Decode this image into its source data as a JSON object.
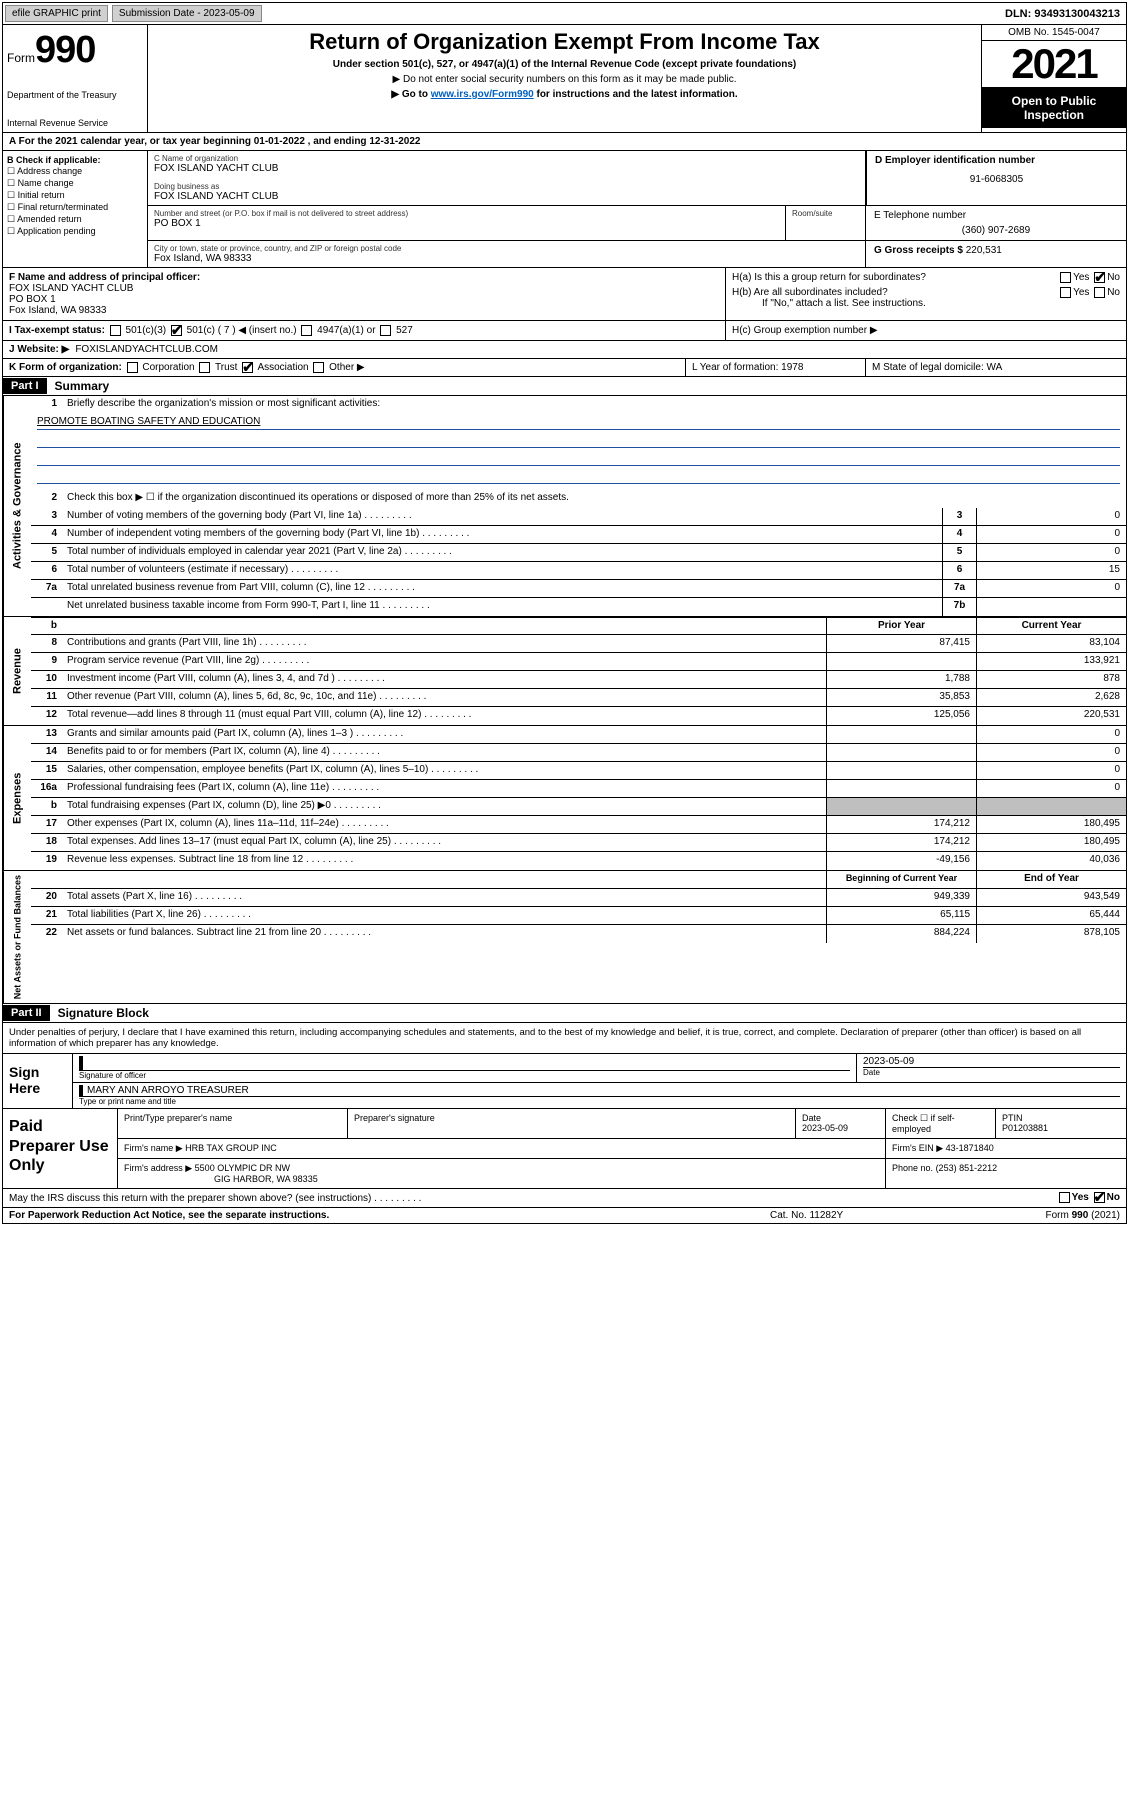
{
  "topbar": {
    "efile": "efile GRAPHIC print",
    "submission_label": "Submission Date - 2023-05-09",
    "dln": "DLN: 93493130043213"
  },
  "header": {
    "form_label": "Form",
    "form_num": "990",
    "dept": "Department of the Treasury",
    "irs": "Internal Revenue Service",
    "title": "Return of Organization Exempt From Income Tax",
    "subtitle": "Under section 501(c), 527, or 4947(a)(1) of the Internal Revenue Code (except private foundations)",
    "note1": "▶ Do not enter social security numbers on this form as it may be made public.",
    "note2_a": "▶ Go to ",
    "note2_link": "www.irs.gov/Form990",
    "note2_b": " for instructions and the latest information.",
    "omb": "OMB No. 1545-0047",
    "year": "2021",
    "open": "Open to Public Inspection"
  },
  "row_a": "A For the 2021 calendar year, or tax year beginning 01-01-2022  , and ending 12-31-2022",
  "section_b": {
    "label": "B Check if applicable:",
    "items": [
      "Address change",
      "Name change",
      "Initial return",
      "Final return/terminated",
      "Amended return",
      "Application pending"
    ]
  },
  "section_c": {
    "name_label": "C Name of organization",
    "name": "FOX ISLAND YACHT CLUB",
    "dba_label": "Doing business as",
    "dba": "FOX ISLAND YACHT CLUB",
    "addr_label": "Number and street (or P.O. box if mail is not delivered to street address)",
    "room_label": "Room/suite",
    "addr": "PO BOX 1",
    "city_label": "City or town, state or province, country, and ZIP or foreign postal code",
    "city": "Fox Island, WA  98333"
  },
  "section_d": {
    "label": "D Employer identification number",
    "value": "91-6068305"
  },
  "section_e": {
    "label": "E Telephone number",
    "value": "(360) 907-2689"
  },
  "section_g": {
    "label": "G Gross receipts $",
    "value": "220,531"
  },
  "section_f": {
    "label": "F Name and address of principal officer:",
    "l1": "FOX ISLAND YACHT CLUB",
    "l2": "PO BOX 1",
    "l3": "Fox Island, WA  98333"
  },
  "section_h": {
    "ha": "H(a)  Is this a group return for subordinates?",
    "hb": "H(b)  Are all subordinates included?",
    "hb_note": "If \"No,\" attach a list. See instructions.",
    "hc": "H(c)  Group exemption number ▶",
    "yes": "Yes",
    "no": "No"
  },
  "row_i": {
    "label": "I  Tax-exempt status:",
    "opts": [
      "501(c)(3)",
      "501(c) ( 7 ) ◀ (insert no.)",
      "4947(a)(1) or",
      "527"
    ]
  },
  "row_j": {
    "label": "J  Website: ▶",
    "value": "FOXISLANDYACHTCLUB.COM"
  },
  "row_k": {
    "label": "K Form of organization:",
    "opts": [
      "Corporation",
      "Trust",
      "Association",
      "Other ▶"
    ]
  },
  "row_l": {
    "l": "L Year of formation: 1978",
    "m": "M State of legal domicile: WA"
  },
  "part1": {
    "hdr": "Part I",
    "title": "Summary",
    "tabs": [
      "Activities & Governance",
      "Revenue",
      "Expenses",
      "Net Assets or Fund Balances"
    ],
    "q1": "Briefly describe the organization's mission or most significant activities:",
    "mission": "PROMOTE BOATING SAFETY AND EDUCATION",
    "q2": "Check this box ▶ ☐  if the organization discontinued its operations or disposed of more than 25% of its net assets.",
    "rows_ag": [
      {
        "n": "3",
        "t": "Number of voting members of the governing body (Part VI, line 1a)",
        "box": "3",
        "v": "0"
      },
      {
        "n": "4",
        "t": "Number of independent voting members of the governing body (Part VI, line 1b)",
        "box": "4",
        "v": "0"
      },
      {
        "n": "5",
        "t": "Total number of individuals employed in calendar year 2021 (Part V, line 2a)",
        "box": "5",
        "v": "0"
      },
      {
        "n": "6",
        "t": "Total number of volunteers (estimate if necessary)",
        "box": "6",
        "v": "15"
      },
      {
        "n": "7a",
        "t": "Total unrelated business revenue from Part VIII, column (C), line 12",
        "box": "7a",
        "v": "0"
      },
      {
        "n": "",
        "t": "Net unrelated business taxable income from Form 990-T, Part I, line 11",
        "box": "7b",
        "v": ""
      }
    ],
    "col_prior": "Prior Year",
    "col_current": "Current Year",
    "rows_rev": [
      {
        "n": "8",
        "t": "Contributions and grants (Part VIII, line 1h)",
        "p": "87,415",
        "c": "83,104"
      },
      {
        "n": "9",
        "t": "Program service revenue (Part VIII, line 2g)",
        "p": "",
        "c": "133,921"
      },
      {
        "n": "10",
        "t": "Investment income (Part VIII, column (A), lines 3, 4, and 7d )",
        "p": "1,788",
        "c": "878"
      },
      {
        "n": "11",
        "t": "Other revenue (Part VIII, column (A), lines 5, 6d, 8c, 9c, 10c, and 11e)",
        "p": "35,853",
        "c": "2,628"
      },
      {
        "n": "12",
        "t": "Total revenue—add lines 8 through 11 (must equal Part VIII, column (A), line 12)",
        "p": "125,056",
        "c": "220,531"
      }
    ],
    "rows_exp": [
      {
        "n": "13",
        "t": "Grants and similar amounts paid (Part IX, column (A), lines 1–3 )",
        "p": "",
        "c": "0"
      },
      {
        "n": "14",
        "t": "Benefits paid to or for members (Part IX, column (A), line 4)",
        "p": "",
        "c": "0"
      },
      {
        "n": "15",
        "t": "Salaries, other compensation, employee benefits (Part IX, column (A), lines 5–10)",
        "p": "",
        "c": "0"
      },
      {
        "n": "16a",
        "t": "Professional fundraising fees (Part IX, column (A), line 11e)",
        "p": "",
        "c": "0"
      },
      {
        "n": "b",
        "t": "Total fundraising expenses (Part IX, column (D), line 25) ▶0",
        "p": "shade",
        "c": "shade"
      },
      {
        "n": "17",
        "t": "Other expenses (Part IX, column (A), lines 11a–11d, 11f–24e)",
        "p": "174,212",
        "c": "180,495"
      },
      {
        "n": "18",
        "t": "Total expenses. Add lines 13–17 (must equal Part IX, column (A), line 25)",
        "p": "174,212",
        "c": "180,495"
      },
      {
        "n": "19",
        "t": "Revenue less expenses. Subtract line 18 from line 12",
        "p": "-49,156",
        "c": "40,036"
      }
    ],
    "col_begin": "Beginning of Current Year",
    "col_end": "End of Year",
    "rows_net": [
      {
        "n": "20",
        "t": "Total assets (Part X, line 16)",
        "p": "949,339",
        "c": "943,549"
      },
      {
        "n": "21",
        "t": "Total liabilities (Part X, line 26)",
        "p": "65,115",
        "c": "65,444"
      },
      {
        "n": "22",
        "t": "Net assets or fund balances. Subtract line 21 from line 20",
        "p": "884,224",
        "c": "878,105"
      }
    ]
  },
  "part2": {
    "hdr": "Part II",
    "title": "Signature Block",
    "decl": "Under penalties of perjury, I declare that I have examined this return, including accompanying schedules and statements, and to the best of my knowledge and belief, it is true, correct, and complete. Declaration of preparer (other than officer) is based on all information of which preparer has any knowledge.",
    "sign_here": "Sign Here",
    "sig_officer": "Signature of officer",
    "sig_date": "2023-05-09",
    "date_lbl": "Date",
    "officer": "MARY ANN ARROYO TREASURER",
    "officer_lbl": "Type or print name and title",
    "paid": "Paid Preparer Use Only",
    "hdr_print": "Print/Type preparer's name",
    "hdr_sig": "Preparer's signature",
    "hdr_date": "Date",
    "prep_date": "2023-05-09",
    "check_if": "Check ☐ if self-employed",
    "ptin_lbl": "PTIN",
    "ptin": "P01203881",
    "firm_name_lbl": "Firm's name   ▶",
    "firm_name": "HRB TAX GROUP INC",
    "firm_ein_lbl": "Firm's EIN ▶",
    "firm_ein": "43-1871840",
    "firm_addr_lbl": "Firm's address ▶",
    "firm_addr1": "5500 OLYMPIC DR NW",
    "firm_addr2": "GIG HARBOR, WA  98335",
    "phone_lbl": "Phone no.",
    "phone": "(253) 851-2212",
    "irs_q": "May the IRS discuss this return with the preparer shown above? (see instructions)"
  },
  "footer": {
    "left": "For Paperwork Reduction Act Notice, see the separate instructions.",
    "mid": "Cat. No. 11282Y",
    "right": "Form 990 (2021)"
  }
}
